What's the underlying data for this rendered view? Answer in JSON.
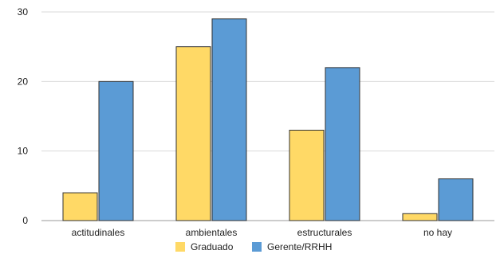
{
  "chart_data": {
    "type": "bar",
    "categories": [
      "actitudinales",
      "ambientales",
      "estructurales",
      "no hay"
    ],
    "series": [
      {
        "name": "Graduado",
        "values": [
          4,
          25,
          13,
          1
        ],
        "color": "#FFD966"
      },
      {
        "name": "Gerente/RRHH",
        "values": [
          20,
          29,
          22,
          6
        ],
        "color": "#5B9BD5"
      }
    ],
    "ylim": [
      0,
      30
    ],
    "yticks": [
      0,
      10,
      20,
      30
    ],
    "grid": true,
    "legend": "bottom-center",
    "bar_outline_color": "#333333"
  }
}
